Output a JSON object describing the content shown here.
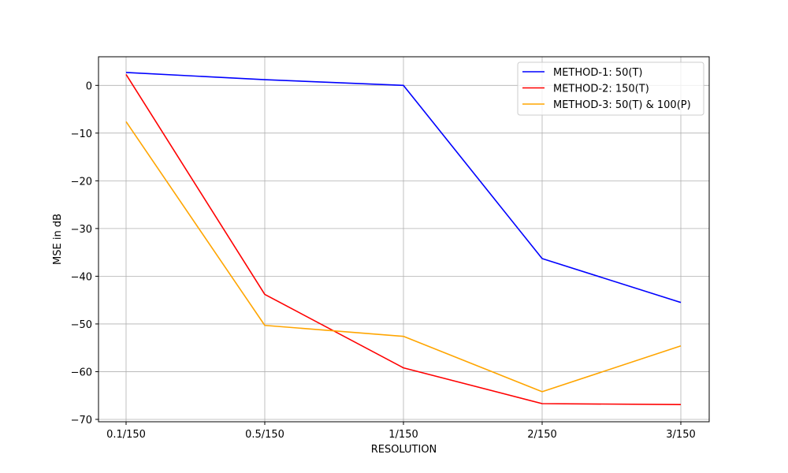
{
  "chart_data": {
    "type": "line",
    "title": "",
    "xlabel": "RESOLUTION",
    "ylabel": "MSE in dB",
    "categories": [
      "0.1/150",
      "0.5/150",
      "1/150",
      "2/150",
      "3/150"
    ],
    "ylim": [
      -70.5,
      6
    ],
    "yticks": [
      0,
      -10,
      -20,
      -30,
      -40,
      -50,
      -60,
      -70
    ],
    "grid": true,
    "legend_position": "top-right",
    "series": [
      {
        "name": "METHOD-1: 50(T)",
        "color": "#0000ff",
        "values": [
          2.7,
          1.2,
          0.0,
          -36.3,
          -45.5
        ]
      },
      {
        "name": "METHOD-2: 150(T)",
        "color": "#ff0000",
        "values": [
          2.3,
          -43.8,
          -59.2,
          -66.7,
          -66.9
        ]
      },
      {
        "name": "METHOD-3: 50(T) & 100(P)",
        "color": "#ffa500",
        "values": [
          -7.6,
          -50.3,
          -52.6,
          -64.2,
          -54.6
        ]
      }
    ]
  }
}
